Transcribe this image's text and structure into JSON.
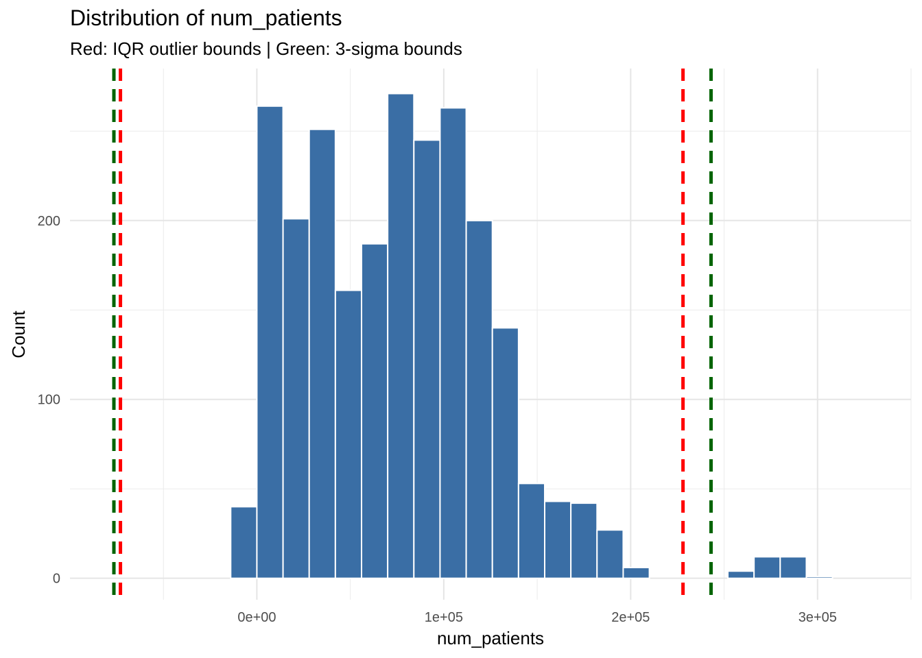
{
  "chart_data": {
    "type": "bar",
    "title": "Distribution of num_patients",
    "subtitle": "Red: IQR outlier bounds | Green: 3-sigma bounds",
    "xlabel": "num_patients",
    "ylabel": "Count",
    "xlim": [
      -100000,
      350000
    ],
    "ylim": [
      -12,
      285
    ],
    "x_ticks": [
      0,
      100000,
      200000,
      300000
    ],
    "x_tick_labels": [
      "0e+00",
      "1e+05",
      "2e+05",
      "3e+05"
    ],
    "y_ticks": [
      0,
      100,
      200
    ],
    "y_tick_labels": [
      "0",
      "100",
      "200"
    ],
    "grid": true,
    "bin_width": 14000,
    "bins": [
      {
        "x": -7000,
        "count": 40
      },
      {
        "x": 7000,
        "count": 264
      },
      {
        "x": 21000,
        "count": 201
      },
      {
        "x": 35000,
        "count": 251
      },
      {
        "x": 49000,
        "count": 161
      },
      {
        "x": 63000,
        "count": 187
      },
      {
        "x": 77000,
        "count": 271
      },
      {
        "x": 91000,
        "count": 245
      },
      {
        "x": 105000,
        "count": 263
      },
      {
        "x": 119000,
        "count": 200
      },
      {
        "x": 133000,
        "count": 140
      },
      {
        "x": 147000,
        "count": 53
      },
      {
        "x": 161000,
        "count": 43
      },
      {
        "x": 175000,
        "count": 42
      },
      {
        "x": 189000,
        "count": 27
      },
      {
        "x": 203000,
        "count": 6
      },
      {
        "x": 217000,
        "count": 0
      },
      {
        "x": 231000,
        "count": 0
      },
      {
        "x": 245000,
        "count": 0
      },
      {
        "x": 259000,
        "count": 4
      },
      {
        "x": 273000,
        "count": 12
      },
      {
        "x": 287000,
        "count": 12
      },
      {
        "x": 301000,
        "count": 1
      }
    ],
    "bar_color": "#3a6ea5",
    "reference_lines": [
      {
        "kind": "IQR",
        "color": "#ff0000",
        "values": [
          -73000,
          228000
        ]
      },
      {
        "kind": "3-sigma",
        "color": "#006400",
        "values": [
          -76500,
          243000
        ]
      }
    ]
  }
}
